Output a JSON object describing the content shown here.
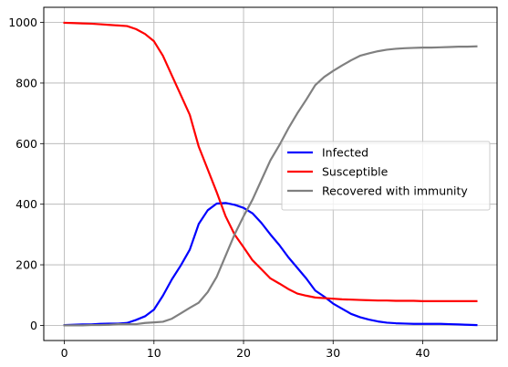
{
  "chart_data": {
    "type": "line",
    "title": "",
    "xlabel": "",
    "ylabel": "",
    "xlim": [
      -2.3,
      48.3
    ],
    "ylim": [
      -50,
      1050
    ],
    "xticks": [
      0,
      10,
      20,
      30,
      40
    ],
    "yticks": [
      0,
      200,
      400,
      600,
      800,
      1000
    ],
    "grid": true,
    "legend": "center-right",
    "x": [
      0,
      1,
      2,
      3,
      4,
      5,
      6,
      7,
      8,
      9,
      10,
      11,
      12,
      13,
      14,
      15,
      16,
      17,
      18,
      19,
      20,
      21,
      22,
      23,
      24,
      25,
      26,
      27,
      28,
      29,
      30,
      31,
      32,
      33,
      34,
      35,
      36,
      37,
      38,
      39,
      40,
      41,
      42,
      43,
      44,
      45,
      46
    ],
    "series": [
      {
        "name": "Infected",
        "color": "#0000ff",
        "values": [
          1,
          2,
          3,
          3,
          5,
          6,
          6,
          8,
          18,
          30,
          52,
          98,
          152,
          198,
          250,
          335,
          380,
          402,
          404,
          398,
          388,
          370,
          338,
          300,
          265,
          225,
          190,
          155,
          115,
          95,
          72,
          55,
          38,
          27,
          19,
          13,
          9,
          7,
          6,
          5,
          5,
          5,
          5,
          4,
          3,
          2,
          1
        ]
      },
      {
        "name": "Susceptible",
        "color": "#ff0000",
        "values": [
          999,
          998,
          997,
          996,
          994,
          992,
          990,
          988,
          978,
          962,
          938,
          890,
          825,
          760,
          695,
          590,
          515,
          440,
          360,
          300,
          258,
          215,
          185,
          155,
          138,
          120,
          105,
          98,
          92,
          90,
          88,
          86,
          85,
          84,
          83,
          82,
          82,
          81,
          81,
          81,
          80,
          80,
          80,
          80,
          80,
          80,
          80
        ]
      },
      {
        "name": "Recovered with immunity",
        "color": "#808080",
        "values": [
          0,
          0,
          0,
          1,
          1,
          2,
          4,
          4,
          4,
          8,
          10,
          12,
          22,
          40,
          58,
          75,
          110,
          160,
          230,
          300,
          360,
          415,
          480,
          545,
          595,
          650,
          700,
          745,
          793,
          820,
          840,
          858,
          875,
          890,
          898,
          905,
          910,
          913,
          915,
          916,
          917,
          917,
          918,
          919,
          920,
          920,
          921
        ]
      }
    ]
  }
}
